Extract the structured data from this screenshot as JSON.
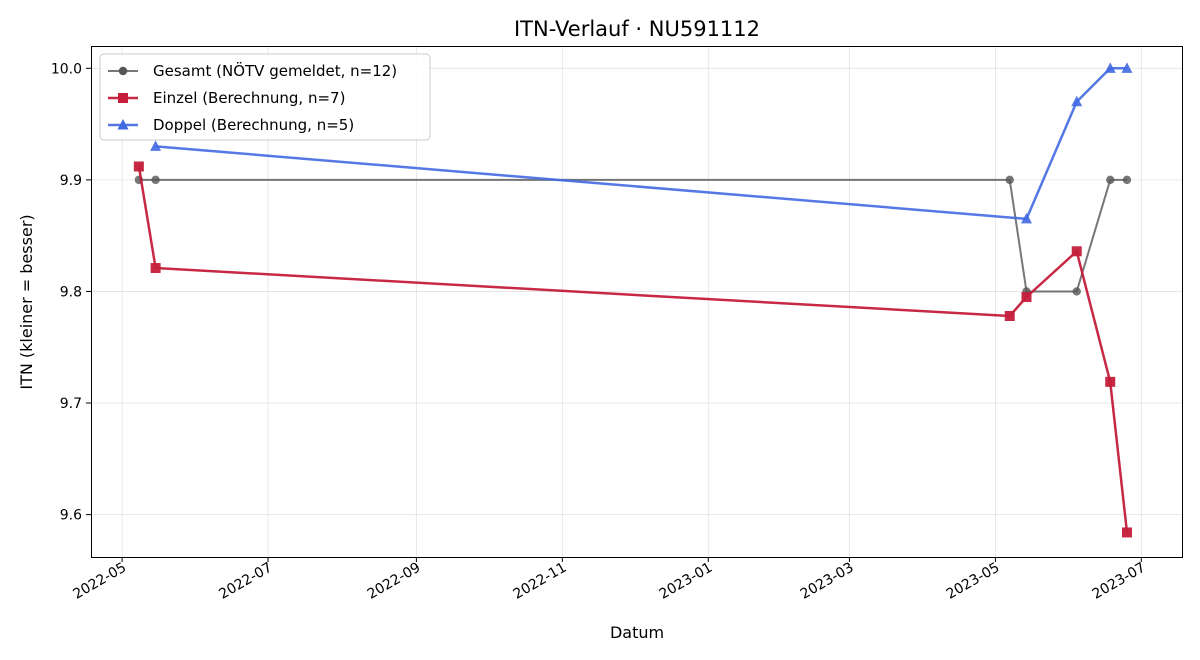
{
  "chart_data": {
    "type": "line",
    "title": "ITN-Verlauf · NU591112",
    "xlabel": "Datum",
    "ylabel": "ITN  (kleiner = besser)",
    "xlim": [
      "2022-04-18",
      "2023-07-18"
    ],
    "ylim": [
      9.562,
      10.02
    ],
    "x_ticks": [
      "2022-05",
      "2022-07",
      "2022-09",
      "2022-11",
      "2023-01",
      "2023-03",
      "2023-05",
      "2023-07"
    ],
    "y_ticks": [
      "9.6",
      "9.7",
      "9.8",
      "9.9",
      "10.0"
    ],
    "grid": true,
    "legend_position": "top-left",
    "series": [
      {
        "name": "Gesamt (NÖTV gemeldet, n=12)",
        "color": "#555555",
        "marker": "circle",
        "points": [
          {
            "x": "2022-05-08",
            "y": 9.9
          },
          {
            "x": "2022-05-15",
            "y": 9.9
          },
          {
            "x": "2023-05-07",
            "y": 9.9
          },
          {
            "x": "2023-05-14",
            "y": 9.8
          },
          {
            "x": "2023-06-04",
            "y": 9.8
          },
          {
            "x": "2023-06-18",
            "y": 9.9
          },
          {
            "x": "2023-06-25",
            "y": 9.9
          }
        ]
      },
      {
        "name": "Einzel (Berechnung, n=7)",
        "color": "#c41e3a",
        "marker": "square",
        "points": [
          {
            "x": "2022-05-08",
            "y": 9.912
          },
          {
            "x": "2022-05-15",
            "y": 9.821
          },
          {
            "x": "2023-05-07",
            "y": 9.778
          },
          {
            "x": "2023-05-14",
            "y": 9.795
          },
          {
            "x": "2023-06-04",
            "y": 9.836
          },
          {
            "x": "2023-06-18",
            "y": 9.719
          },
          {
            "x": "2023-06-25",
            "y": 9.584
          }
        ]
      },
      {
        "name": "Doppel (Berechnung, n=5)",
        "color": "#4169e1",
        "marker": "triangle",
        "points": [
          {
            "x": "2022-05-15",
            "y": 9.93
          },
          {
            "x": "2023-05-14",
            "y": 9.865
          },
          {
            "x": "2023-06-04",
            "y": 9.97
          },
          {
            "x": "2023-06-18",
            "y": 10.0
          },
          {
            "x": "2023-06-25",
            "y": 10.0
          }
        ]
      }
    ]
  }
}
